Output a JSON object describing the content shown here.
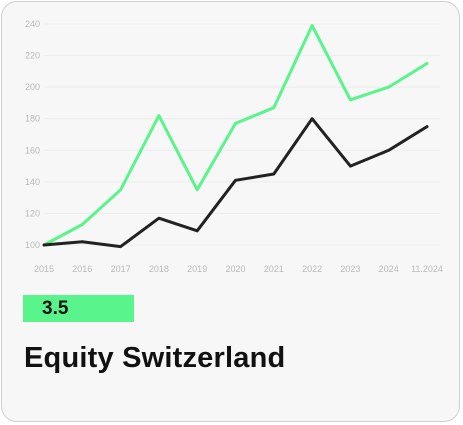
{
  "accent_color": "#59f48b",
  "dark_color": "#222222",
  "badge": {
    "value": "3.5"
  },
  "card_title": "Equity Switzerland",
  "chart_data": {
    "type": "line",
    "categories": [
      "2015",
      "2016",
      "2017",
      "2018",
      "2019",
      "2020",
      "2021",
      "2022",
      "2023",
      "2024",
      "11.2024"
    ],
    "yticks": [
      100,
      120,
      140,
      160,
      180,
      200,
      220,
      240
    ],
    "ylim": [
      100,
      240
    ],
    "grid": true,
    "series": [
      {
        "color": "#59f48b",
        "values": [
          100,
          113,
          135,
          182,
          135,
          177,
          187,
          239,
          192,
          200,
          215
        ]
      },
      {
        "color": "#222222",
        "values": [
          100,
          102,
          99,
          117,
          109,
          141,
          145,
          180,
          150,
          160,
          175
        ]
      }
    ]
  }
}
